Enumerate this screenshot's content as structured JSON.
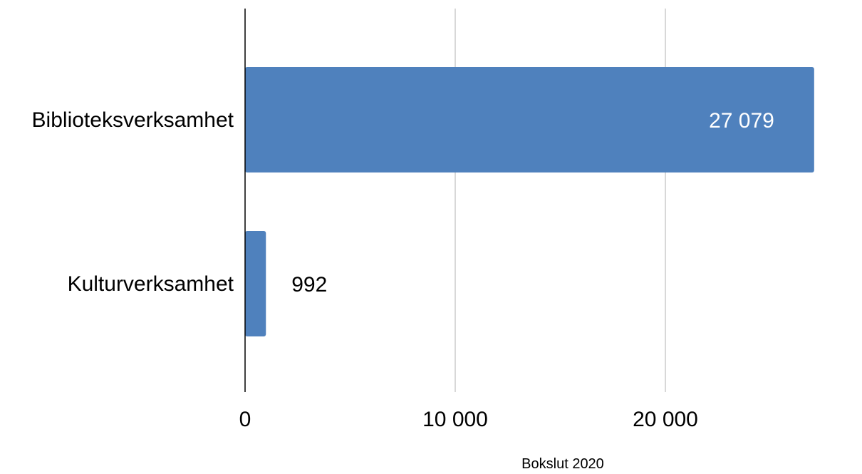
{
  "chart_data": {
    "type": "bar",
    "orientation": "horizontal",
    "categories": [
      "Biblioteksverksamhet",
      "Kulturverksamhet"
    ],
    "values": [
      27079,
      992
    ],
    "value_labels": [
      "27 079",
      "992"
    ],
    "xlim": [
      0,
      28000
    ],
    "xticks": [
      0,
      10000,
      20000
    ],
    "xtick_labels": [
      "0",
      "10 000",
      "20 000"
    ],
    "grid": "vertical",
    "legend": "none",
    "bar_color": "#4F81BD",
    "gridline_color": "#CCCCCC",
    "axis_color": "#000000",
    "label_colors": {
      "inside": "#FFFFFF",
      "outside": "#000000"
    }
  },
  "caption": "Bokslut 2020"
}
